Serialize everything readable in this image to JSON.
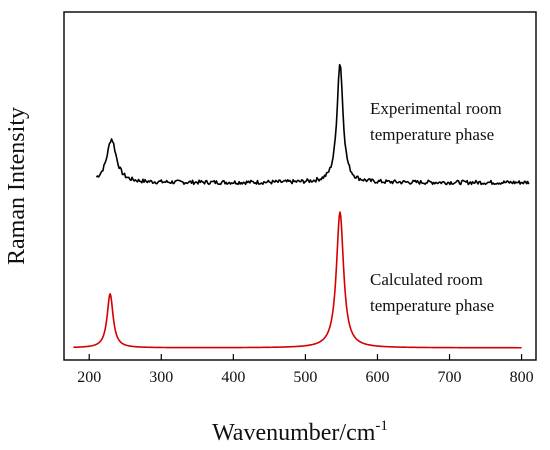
{
  "chart_data": {
    "type": "line",
    "title": "",
    "xlabel": "Wavenumber/cm",
    "xlabel_superscript": "-1",
    "ylabel": "Raman Intensity",
    "xlim": [
      165,
      820
    ],
    "ylim": [
      0,
      1
    ],
    "x_ticks": [
      200,
      300,
      400,
      500,
      600,
      700,
      800
    ],
    "y_ticks_shown": false,
    "grid": false,
    "legend": "none",
    "series": [
      {
        "color": "#000000",
        "x_range": [
          210,
          810
        ],
        "baseline": 0.51,
        "noise": true,
        "peaks": [
          {
            "center": 231,
            "height": 0.125,
            "width": 8
          },
          {
            "center": 548,
            "height": 0.345,
            "width": 5
          }
        ]
      },
      {
        "color": "#d40000",
        "x_range": [
          178,
          800
        ],
        "baseline": 0.035,
        "noise": false,
        "peaks": [
          {
            "center": 229,
            "height": 0.155,
            "width": 5
          },
          {
            "center": 548,
            "height": 0.39,
            "width": 6
          }
        ]
      }
    ],
    "annotations": [
      {
        "lines": [
          "Experimental room",
          "temperature phase"
        ]
      },
      {
        "lines": [
          "Calculated room",
          "temperature phase"
        ]
      }
    ]
  }
}
